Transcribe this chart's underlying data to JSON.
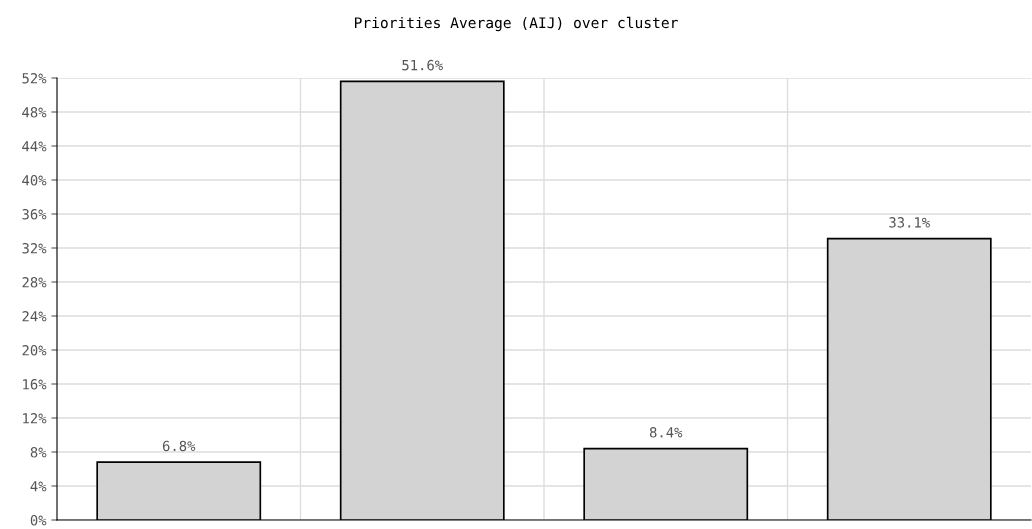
{
  "chart_data": {
    "type": "bar",
    "title": "Priorities Average (AIJ) over cluster",
    "categories": [
      null,
      null,
      null,
      null
    ],
    "values": [
      6.8,
      51.6,
      8.4,
      33.1
    ],
    "value_labels": [
      "6.8%",
      "51.6%",
      "8.4%",
      "33.1%"
    ],
    "color": "#d3d3d3",
    "ylim": [
      0,
      52
    ],
    "yticks": [
      {
        "value": 0,
        "label": "0%"
      },
      {
        "value": 4,
        "label": "4%"
      },
      {
        "value": 8,
        "label": "8%"
      },
      {
        "value": 12,
        "label": "12%"
      },
      {
        "value": 16,
        "label": "16%"
      },
      {
        "value": 20,
        "label": "20%"
      },
      {
        "value": 24,
        "label": "24%"
      },
      {
        "value": 28,
        "label": "28%"
      },
      {
        "value": 32,
        "label": "32%"
      },
      {
        "value": 36,
        "label": "36%"
      },
      {
        "value": 40,
        "label": "40%"
      },
      {
        "value": 44,
        "label": "44%"
      },
      {
        "value": 48,
        "label": "48%"
      },
      {
        "value": 52,
        "label": "52%"
      }
    ],
    "grid": true
  }
}
